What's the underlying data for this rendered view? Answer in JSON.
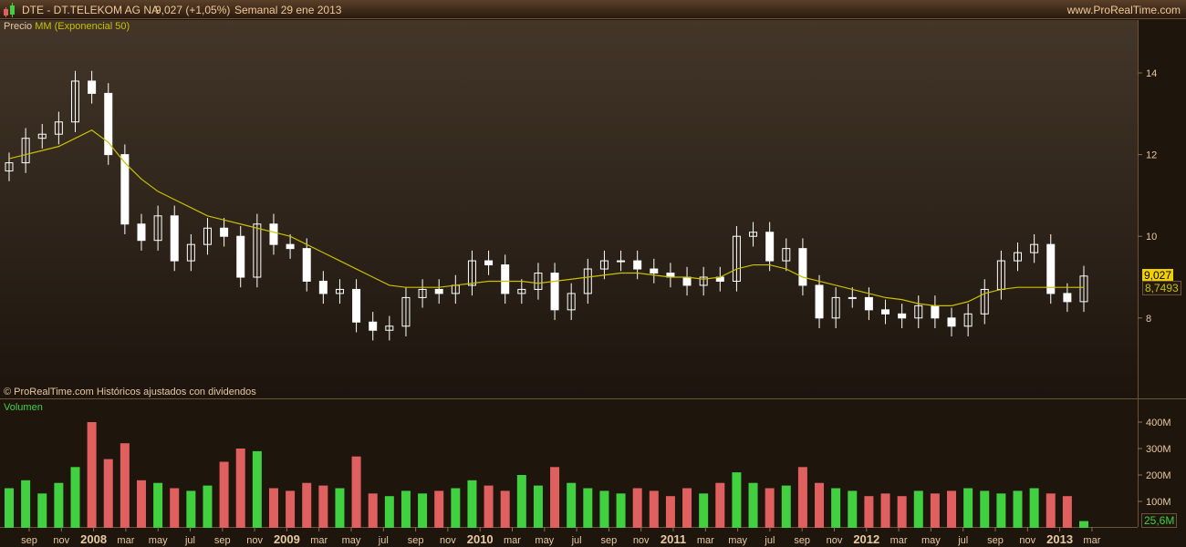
{
  "header": {
    "symbol": "DTE - DT.TELEKOM AG NA",
    "price": "9,027 (+1,05%)",
    "period": "Semanal  29 ene 2013",
    "site": "www.ProRealTime.com"
  },
  "price_panel": {
    "label_prefix": "Precio",
    "label_indicator": "MM (Exponencial 50)",
    "footer": "© ProRealTime.com  Históricos ajustados con dividendos",
    "last_price": "9,027",
    "last_ema": "8,7493"
  },
  "volume_panel": {
    "label": "Volumen",
    "last_volume": "25,6M"
  },
  "colors": {
    "up": "#40d040",
    "down": "#e06060",
    "ema": "#c8c000",
    "candle": "#ffffff",
    "last_price_bg": "#f0d000"
  },
  "chart_data": [
    {
      "type": "candlestick",
      "title": "",
      "series": [
        {
          "name": "Precio"
        },
        {
          "name": "MM (Exponencial 50)"
        }
      ],
      "x": [
        "2007-08",
        "2007-09",
        "2007-10",
        "2007-11",
        "2007-12",
        "2008-01",
        "2008-02",
        "2008-03",
        "2008-04",
        "2008-05",
        "2008-06",
        "2008-07",
        "2008-08",
        "2008-09",
        "2008-10",
        "2008-11",
        "2008-12",
        "2009-01",
        "2009-02",
        "2009-03",
        "2009-04",
        "2009-05",
        "2009-06",
        "2009-07",
        "2009-08",
        "2009-09",
        "2009-10",
        "2009-11",
        "2009-12",
        "2010-01",
        "2010-02",
        "2010-03",
        "2010-04",
        "2010-05",
        "2010-06",
        "2010-07",
        "2010-08",
        "2010-09",
        "2010-10",
        "2010-11",
        "2010-12",
        "2011-01",
        "2011-02",
        "2011-03",
        "2011-04",
        "2011-05",
        "2011-06",
        "2011-07",
        "2011-08",
        "2011-09",
        "2011-10",
        "2011-11",
        "2011-12",
        "2012-01",
        "2012-02",
        "2012-03",
        "2012-04",
        "2012-05",
        "2012-06",
        "2012-07",
        "2012-08",
        "2012-09",
        "2012-10",
        "2012-11",
        "2012-12",
        "2013-01"
      ],
      "close": [
        11.8,
        12.4,
        12.5,
        12.8,
        13.8,
        13.5,
        12.0,
        10.3,
        9.9,
        10.5,
        9.4,
        9.8,
        10.2,
        10.0,
        9.0,
        10.3,
        9.8,
        9.7,
        8.9,
        8.6,
        8.7,
        7.9,
        7.7,
        7.8,
        8.5,
        8.7,
        8.6,
        8.8,
        9.4,
        9.3,
        8.6,
        8.7,
        9.1,
        8.2,
        8.6,
        9.2,
        9.4,
        9.4,
        9.2,
        9.1,
        9.0,
        8.8,
        9.0,
        8.9,
        10.0,
        10.1,
        9.4,
        9.7,
        8.8,
        8.0,
        8.5,
        8.5,
        8.2,
        8.1,
        8.0,
        8.3,
        8.0,
        7.8,
        8.1,
        8.7,
        9.4,
        9.6,
        9.8,
        8.6,
        8.4,
        9.027
      ],
      "ema": [
        11.9,
        12.0,
        12.1,
        12.2,
        12.4,
        12.6,
        12.3,
        11.8,
        11.4,
        11.1,
        10.9,
        10.7,
        10.5,
        10.4,
        10.3,
        10.2,
        10.1,
        10.0,
        9.8,
        9.6,
        9.4,
        9.2,
        9.0,
        8.8,
        8.75,
        8.75,
        8.75,
        8.8,
        8.85,
        8.9,
        8.9,
        8.9,
        8.85,
        8.9,
        8.95,
        9.0,
        9.05,
        9.1,
        9.1,
        9.05,
        9.0,
        9.0,
        8.95,
        9.0,
        9.2,
        9.3,
        9.3,
        9.2,
        9.0,
        8.9,
        8.8,
        8.7,
        8.6,
        8.5,
        8.45,
        8.35,
        8.3,
        8.3,
        8.4,
        8.6,
        8.7,
        8.75,
        8.75,
        8.75,
        8.75,
        8.7493
      ],
      "y_ticks": [
        8,
        10,
        12,
        14
      ],
      "ylim": [
        6.3,
        15.3
      ],
      "x_tick_labels": [
        "sep",
        "nov",
        "2008",
        "mar",
        "may",
        "jul",
        "sep",
        "nov",
        "2009",
        "mar",
        "may",
        "jul",
        "sep",
        "nov",
        "2010",
        "mar",
        "may",
        "jul",
        "sep",
        "nov",
        "2011",
        "mar",
        "may",
        "jul",
        "sep",
        "nov",
        "2012",
        "mar",
        "may",
        "jul",
        "sep",
        "nov",
        "2013",
        "mar"
      ]
    },
    {
      "type": "bar",
      "title": "",
      "series": [
        {
          "name": "Volumen"
        }
      ],
      "values_millions": [
        150,
        180,
        130,
        170,
        230,
        400,
        260,
        320,
        180,
        170,
        150,
        140,
        160,
        250,
        300,
        290,
        150,
        140,
        170,
        160,
        150,
        270,
        130,
        120,
        140,
        130,
        140,
        150,
        180,
        160,
        140,
        200,
        160,
        230,
        170,
        150,
        140,
        130,
        150,
        140,
        120,
        150,
        130,
        170,
        210,
        170,
        150,
        160,
        230,
        170,
        150,
        140,
        120,
        130,
        120,
        140,
        130,
        140,
        150,
        140,
        130,
        140,
        150,
        130,
        120,
        25.6
      ],
      "y_ticks": [
        "100M",
        "200M",
        "300M",
        "400M"
      ],
      "ylim": [
        0,
        450
      ]
    }
  ]
}
